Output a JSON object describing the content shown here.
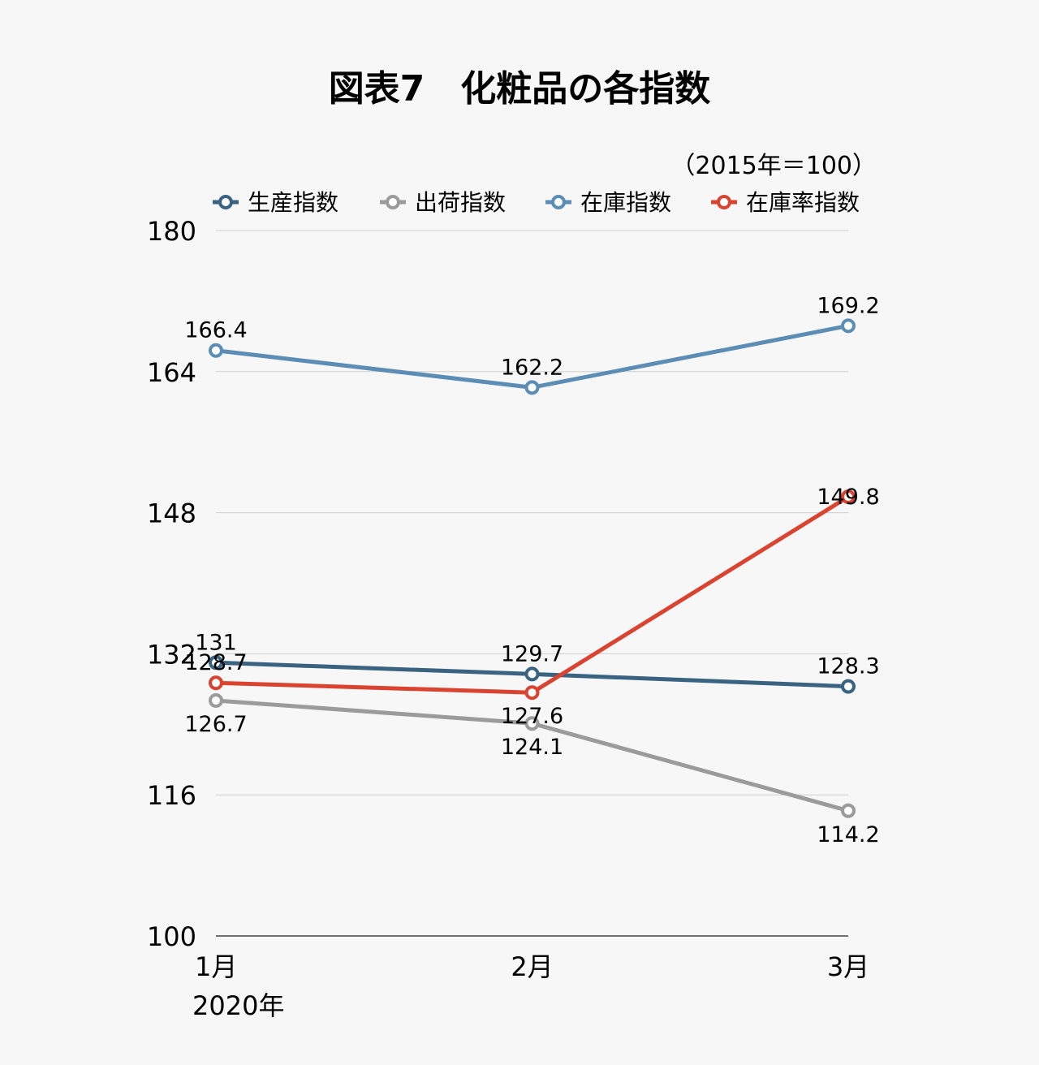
{
  "chart_data": {
    "type": "line",
    "title": "図表7　化粧品の各指数",
    "unit_note": "（2015年＝100）",
    "categories": [
      "1月",
      "2月",
      "3月"
    ],
    "x_sublabel": "2020年",
    "ylim": [
      100,
      180
    ],
    "yticks": [
      100,
      116,
      132,
      148,
      164,
      180
    ],
    "grid": true,
    "legend_position": "top",
    "series": [
      {
        "name": "生産指数",
        "color": "#3a6382",
        "values": [
          131,
          129.7,
          128.3
        ]
      },
      {
        "name": "出荷指数",
        "color": "#9b9b9b",
        "values": [
          126.7,
          124.1,
          114.2
        ]
      },
      {
        "name": "在庫指数",
        "color": "#5b8db5",
        "values": [
          166.4,
          162.2,
          169.2
        ]
      },
      {
        "name": "在庫率指数",
        "color": "#d9432f",
        "values": [
          128.7,
          127.6,
          149.8
        ]
      }
    ]
  }
}
